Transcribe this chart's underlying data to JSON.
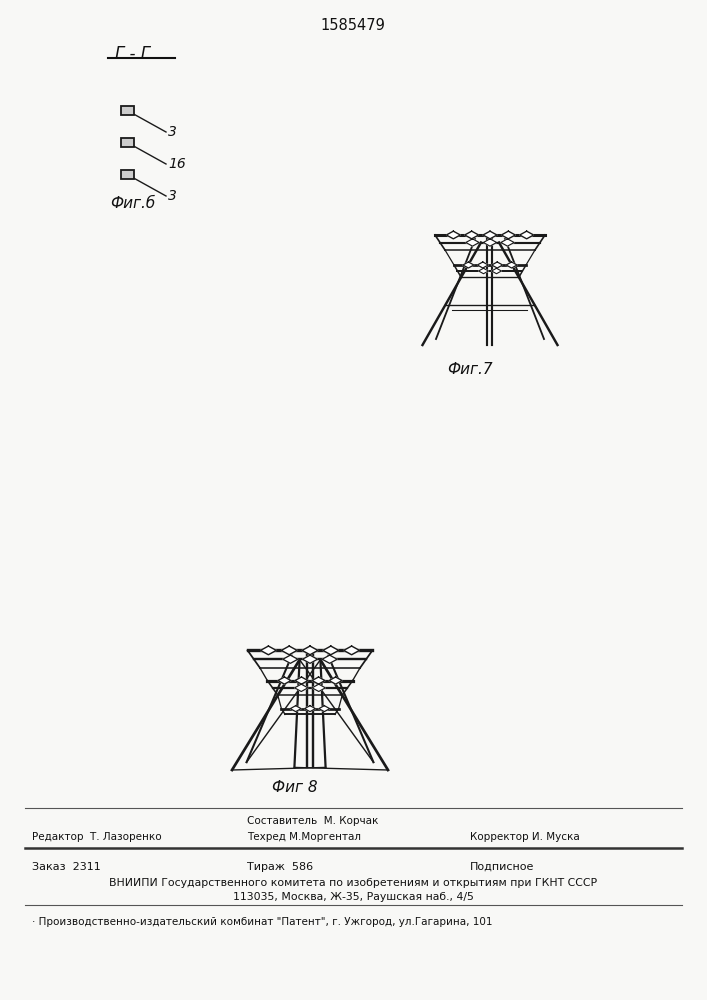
{
  "title": "1585479",
  "bg_color": "#f8f8f6",
  "fig6_label": "Фиг.б",
  "fig7_label": "Фиг.7",
  "fig8_label": "Фиг 8",
  "section_label": "Г - Г",
  "footer_line1_left": "Редактор  Т. Лазоренко",
  "footer_line1_mid": "Составитель  М. Корчак",
  "footer_line1_mid2": "Техред М.Моргентал",
  "footer_line1_right": "Корректор И. Муска",
  "footer_line2_left": "Заказ  2311",
  "footer_line2_mid": "Тираж  586",
  "footer_line2_right": "Подписное",
  "footer_line3": "ВНИИПИ Государственного комитета по изобретениям и открытиям при ГКНТ СССР",
  "footer_line4": "113035, Москва, Ж-35, Раушская наб., 4/5",
  "footer_line5": "· Производственно-издательский комбинат \"Патент\", г. Ужгород, ул.Гагарина, 101",
  "label_3a": "3",
  "label_16": "16",
  "label_3b": "3"
}
